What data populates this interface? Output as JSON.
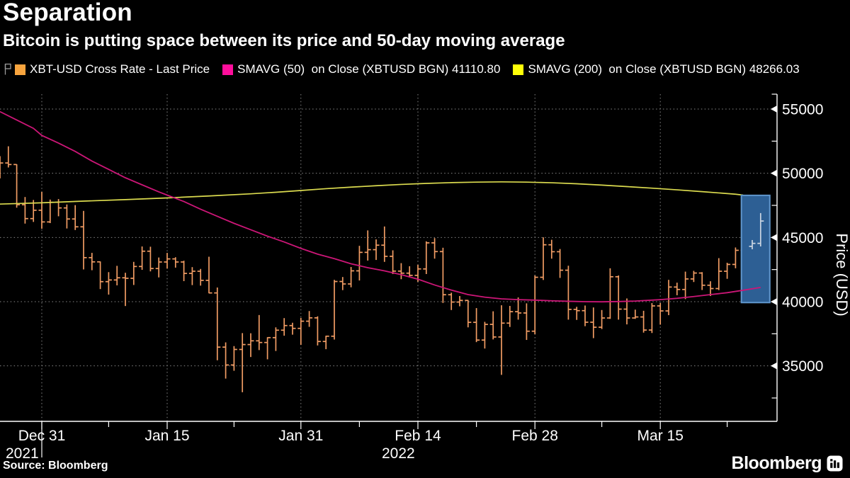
{
  "header": {
    "title": "Separation",
    "subtitle": "Bitcoin is putting space between its price and 50-day moving average"
  },
  "legend": [
    {
      "swatch": "#f7a43e",
      "label": "XBT-USD Cross Rate - Last Price",
      "key_icon": true
    },
    {
      "swatch": "#ff0e9c",
      "label": "SMAVG (50)  on Close (XBTUSD BGN) 41110.80",
      "key_icon": false
    },
    {
      "swatch": "#ffff08",
      "label": "SMAVG (200)  on Close (XBTUSD BGN) 48266.03",
      "key_icon": false
    }
  ],
  "footer": {
    "source": "Source: Bloomberg",
    "logo_text": "Bloomberg"
  },
  "chart_data": {
    "type": "bar",
    "subtype": "ohlc-daily",
    "title": "Separation",
    "ylabel": "Price (USD)",
    "day_zero_date": "2021-12-31",
    "xlim_days": [
      -5,
      88
    ],
    "ylim": [
      30700,
      56200
    ],
    "yticks": [
      35000,
      40000,
      45000,
      50000,
      55000
    ],
    "yticks_minor": [
      32500,
      37500,
      42500,
      47500,
      52500
    ],
    "xticks": [
      {
        "day": 0,
        "label": "Dec 31",
        "year": "2021",
        "year_tick": true
      },
      {
        "day": 15,
        "label": "Jan 15"
      },
      {
        "day": 31,
        "label": "Jan 31"
      },
      {
        "day": 45,
        "label": "Feb 14",
        "year": "2022"
      },
      {
        "day": 59,
        "label": "Feb 28"
      },
      {
        "day": 74,
        "label": "Mar 15"
      }
    ],
    "xticks_minor_days": [
      8,
      23,
      38,
      52,
      67,
      82
    ],
    "grid": true,
    "legend_position": "top",
    "bars_ohlc_by_day": [
      [
        -5,
        50430,
        51330,
        49600,
        50800
      ],
      [
        -4,
        50800,
        52100,
        50450,
        50680
      ],
      [
        -3,
        50680,
        50700,
        47320,
        47550
      ],
      [
        -2,
        47550,
        48150,
        46080,
        46470
      ],
      [
        -1,
        46470,
        47920,
        46210,
        47120
      ],
      [
        0,
        47120,
        48550,
        45680,
        46210
      ],
      [
        1,
        46210,
        47950,
        46120,
        47740
      ],
      [
        2,
        47740,
        47990,
        46650,
        47300
      ],
      [
        3,
        47300,
        47570,
        45700,
        46440
      ],
      [
        4,
        46440,
        47520,
        45580,
        45830
      ],
      [
        5,
        45830,
        47070,
        42510,
        43430
      ],
      [
        6,
        43430,
        43800,
        42450,
        43100
      ],
      [
        7,
        43100,
        43130,
        40980,
        41560
      ],
      [
        8,
        41560,
        42300,
        40550,
        41690
      ],
      [
        9,
        41690,
        42790,
        41270,
        41860
      ],
      [
        10,
        41860,
        42250,
        39660,
        41820
      ],
      [
        11,
        41820,
        43100,
        41300,
        42740
      ],
      [
        12,
        42740,
        44300,
        42480,
        43930
      ],
      [
        13,
        43930,
        44280,
        42360,
        42580
      ],
      [
        14,
        42580,
        43440,
        41890,
        43090
      ],
      [
        15,
        43090,
        43800,
        42580,
        43330
      ],
      [
        16,
        43330,
        43460,
        42650,
        43090
      ],
      [
        17,
        43090,
        43190,
        41600,
        42200
      ],
      [
        18,
        42200,
        42690,
        41290,
        42370
      ],
      [
        19,
        42370,
        42550,
        41250,
        41660
      ],
      [
        20,
        41660,
        43500,
        40650,
        40680
      ],
      [
        21,
        40680,
        41100,
        35440,
        36460
      ],
      [
        22,
        36460,
        36830,
        34010,
        35070
      ],
      [
        23,
        35070,
        36540,
        34620,
        36280
      ],
      [
        24,
        36280,
        37550,
        32950,
        36660
      ],
      [
        25,
        36660,
        37540,
        35690,
        36950
      ],
      [
        26,
        36950,
        38960,
        36230,
        36820
      ],
      [
        27,
        36820,
        37230,
        35510,
        37200
      ],
      [
        28,
        37200,
        38000,
        36160,
        37780
      ],
      [
        29,
        37780,
        38720,
        37350,
        38140
      ],
      [
        30,
        38140,
        38360,
        37430,
        37920
      ],
      [
        31,
        37920,
        38740,
        36640,
        38480
      ],
      [
        32,
        38480,
        39270,
        38040,
        38740
      ],
      [
        33,
        38740,
        38860,
        36590,
        36900
      ],
      [
        34,
        36900,
        37350,
        36300,
        37310
      ],
      [
        35,
        37310,
        41700,
        37050,
        41570
      ],
      [
        36,
        41570,
        41920,
        40900,
        41380
      ],
      [
        37,
        41380,
        42700,
        41120,
        42400
      ],
      [
        38,
        42400,
        44350,
        41650,
        43840
      ],
      [
        39,
        43840,
        45550,
        43200,
        44050
      ],
      [
        40,
        44050,
        44850,
        43250,
        44400
      ],
      [
        41,
        44400,
        45855,
        43100,
        43530
      ],
      [
        42,
        43530,
        44000,
        42150,
        42380
      ],
      [
        43,
        42380,
        43000,
        41750,
        42220
      ],
      [
        44,
        42220,
        42760,
        41880,
        42050
      ],
      [
        45,
        42050,
        42870,
        41550,
        42550
      ],
      [
        46,
        42550,
        44700,
        42150,
        44580
      ],
      [
        47,
        44580,
        44950,
        43350,
        43900
      ],
      [
        48,
        43900,
        44200,
        39900,
        40540
      ],
      [
        49,
        40540,
        40700,
        39350,
        39970
      ],
      [
        50,
        39970,
        40440,
        39640,
        40100
      ],
      [
        51,
        40100,
        40130,
        38000,
        38390
      ],
      [
        52,
        38390,
        39500,
        36850,
        37010
      ],
      [
        53,
        37010,
        38430,
        36350,
        38230
      ],
      [
        54,
        38230,
        39250,
        37060,
        37250
      ],
      [
        55,
        37250,
        39720,
        34300,
        38330
      ],
      [
        56,
        38330,
        39670,
        38030,
        39220
      ],
      [
        57,
        39220,
        40330,
        38600,
        39120
      ],
      [
        58,
        39120,
        39870,
        37020,
        37700
      ],
      [
        59,
        37700,
        42040,
        37460,
        41900
      ],
      [
        60,
        41900,
        45010,
        41690,
        44430
      ],
      [
        61,
        44430,
        44820,
        43350,
        43890
      ],
      [
        62,
        43890,
        44100,
        41850,
        42450
      ],
      [
        63,
        42450,
        42800,
        38600,
        39400
      ],
      [
        64,
        39400,
        39600,
        38580,
        39300
      ],
      [
        65,
        39300,
        39700,
        38090,
        38400
      ],
      [
        66,
        38400,
        39550,
        37160,
        38010
      ],
      [
        67,
        38010,
        39350,
        37870,
        38730
      ],
      [
        68,
        38730,
        42600,
        38660,
        41940
      ],
      [
        69,
        41940,
        42040,
        38600,
        39420
      ],
      [
        70,
        39420,
        40250,
        38230,
        38730
      ],
      [
        71,
        38730,
        39380,
        38660,
        38810
      ],
      [
        72,
        38810,
        39290,
        37590,
        37790
      ],
      [
        73,
        37790,
        39890,
        37560,
        39670
      ],
      [
        74,
        39670,
        39890,
        38210,
        39280
      ],
      [
        75,
        39280,
        41700,
        38950,
        41140
      ],
      [
        76,
        41140,
        41480,
        40500,
        40950
      ],
      [
        77,
        40950,
        42340,
        40200,
        41770
      ],
      [
        78,
        41770,
        42400,
        41530,
        42230
      ],
      [
        79,
        42230,
        42300,
        40910,
        41280
      ],
      [
        80,
        41280,
        41590,
        40440,
        41020
      ],
      [
        81,
        41020,
        43390,
        40900,
        42370
      ],
      [
        82,
        42370,
        43030,
        41780,
        42900
      ],
      [
        83,
        42900,
        44220,
        42600,
        44000
      ],
      [
        84,
        44000,
        44560,
        43610,
        44310
      ],
      [
        85,
        44310,
        44800,
        44080,
        44540
      ],
      [
        86,
        44540,
        46900,
        44300,
        46280
      ]
    ],
    "sma50_by_day": [
      [
        -5,
        54800
      ],
      [
        -3,
        54150
      ],
      [
        -1,
        53500
      ],
      [
        0,
        52950
      ],
      [
        2,
        52350
      ],
      [
        4,
        51700
      ],
      [
        6,
        50950
      ],
      [
        8,
        50300
      ],
      [
        10,
        49650
      ],
      [
        12,
        49100
      ],
      [
        14,
        48550
      ],
      [
        15,
        48300
      ],
      [
        17,
        47800
      ],
      [
        19,
        47200
      ],
      [
        21,
        46650
      ],
      [
        23,
        46100
      ],
      [
        25,
        45600
      ],
      [
        27,
        45100
      ],
      [
        29,
        44650
      ],
      [
        31,
        44150
      ],
      [
        33,
        43700
      ],
      [
        35,
        43350
      ],
      [
        37,
        42950
      ],
      [
        39,
        42650
      ],
      [
        41,
        42400
      ],
      [
        43,
        42100
      ],
      [
        45,
        41750
      ],
      [
        47,
        41300
      ],
      [
        49,
        40900
      ],
      [
        51,
        40550
      ],
      [
        53,
        40350
      ],
      [
        55,
        40220
      ],
      [
        57,
        40160
      ],
      [
        59,
        40120
      ],
      [
        61,
        40070
      ],
      [
        63,
        40030
      ],
      [
        65,
        40000
      ],
      [
        67,
        39990
      ],
      [
        69,
        40010
      ],
      [
        71,
        40050
      ],
      [
        73,
        40120
      ],
      [
        74,
        40160
      ],
      [
        76,
        40260
      ],
      [
        78,
        40400
      ],
      [
        80,
        40550
      ],
      [
        82,
        40700
      ],
      [
        84,
        40900
      ],
      [
        86,
        41110
      ]
    ],
    "sma200_by_day": [
      [
        -5,
        47600
      ],
      [
        0,
        47700
      ],
      [
        5,
        47830
      ],
      [
        10,
        47950
      ],
      [
        15,
        48080
      ],
      [
        20,
        48230
      ],
      [
        25,
        48400
      ],
      [
        28,
        48520
      ],
      [
        31,
        48660
      ],
      [
        34,
        48800
      ],
      [
        37,
        48920
      ],
      [
        40,
        49030
      ],
      [
        43,
        49130
      ],
      [
        46,
        49210
      ],
      [
        49,
        49270
      ],
      [
        52,
        49310
      ],
      [
        55,
        49330
      ],
      [
        58,
        49310
      ],
      [
        61,
        49260
      ],
      [
        64,
        49180
      ],
      [
        67,
        49080
      ],
      [
        70,
        48960
      ],
      [
        73,
        48840
      ],
      [
        76,
        48710
      ],
      [
        79,
        48570
      ],
      [
        81,
        48470
      ],
      [
        83,
        48370
      ],
      [
        83.9,
        48300
      ]
    ],
    "sma50_last_value": 41110.8,
    "sma200_last_value": 48266.03,
    "highlight_box": {
      "day_start": 83.7,
      "day_end": 87.1,
      "top_value": 48280,
      "bottom_value": 39930
    },
    "pale_from_day": 85,
    "colors": {
      "bars": "#f09c64",
      "bars_pale": "#ccd6e2",
      "sma50": "#cc1677",
      "sma200": "#dbdb4f",
      "grid": "#878787",
      "axis": "#ffffff",
      "box_fill": "#2d5f94",
      "box_border": "#6096cc",
      "background": "#000000"
    }
  }
}
